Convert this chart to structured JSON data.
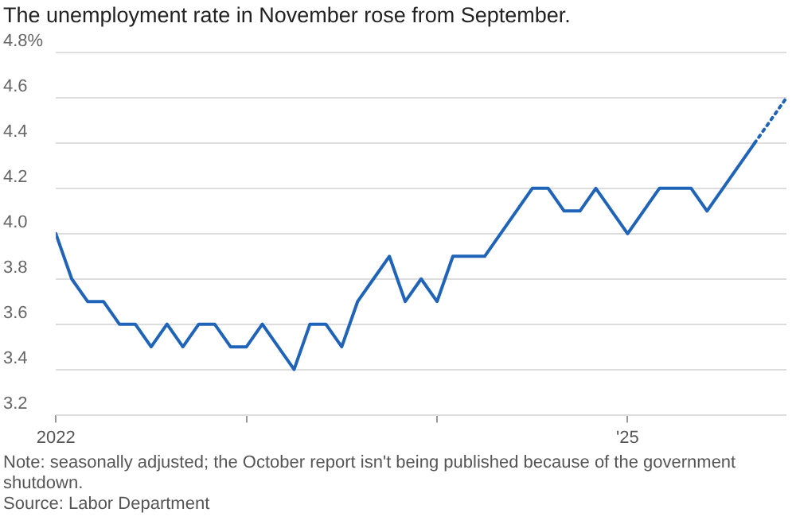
{
  "chart_data": {
    "type": "line",
    "title": "The unemployment rate in November rose from September.",
    "annotations": [
      "Note: seasonally adjusted; the October report isn't being published because of the government shutdown.",
      "Source: Labor Department"
    ],
    "series": [
      {
        "color": "#1f64b8",
        "line_style": "solid",
        "x": [
          "2022-01",
          "2022-02",
          "2022-03",
          "2022-04",
          "2022-05",
          "2022-06",
          "2022-07",
          "2022-08",
          "2022-09",
          "2022-10",
          "2022-11",
          "2022-12",
          "2023-01",
          "2023-02",
          "2023-03",
          "2023-04",
          "2023-05",
          "2023-06",
          "2023-07",
          "2023-08",
          "2023-09",
          "2023-10",
          "2023-11",
          "2023-12",
          "2024-01",
          "2024-02",
          "2024-03",
          "2024-04",
          "2024-05",
          "2024-06",
          "2024-07",
          "2024-08",
          "2024-09",
          "2024-10",
          "2024-11",
          "2024-12",
          "2025-01",
          "2025-02",
          "2025-03",
          "2025-04",
          "2025-05",
          "2025-06",
          "2025-07",
          "2025-08",
          "2025-09"
        ],
        "values": [
          4.0,
          3.8,
          3.7,
          3.7,
          3.6,
          3.6,
          3.5,
          3.6,
          3.5,
          3.6,
          3.6,
          3.5,
          3.5,
          3.6,
          3.5,
          3.4,
          3.6,
          3.6,
          3.5,
          3.7,
          3.8,
          3.9,
          3.7,
          3.8,
          3.7,
          3.9,
          3.9,
          3.9,
          4.0,
          4.1,
          4.2,
          4.2,
          4.1,
          4.1,
          4.2,
          4.1,
          4.0,
          4.1,
          4.2,
          4.2,
          4.2,
          4.1,
          4.2,
          4.3,
          4.4
        ]
      },
      {
        "color": "#1f64b8",
        "line_style": "dotted",
        "x": [
          "2025-09",
          "2025-11"
        ],
        "values": [
          4.4,
          4.6
        ]
      }
    ],
    "xlim": [
      "2022-01",
      "2025-11"
    ],
    "xticks": [
      {
        "value": "2022-01",
        "label": "2022"
      },
      {
        "value": "2023-01",
        "label": null
      },
      {
        "value": "2024-01",
        "label": null
      },
      {
        "value": "2025-01",
        "label": "'25"
      }
    ],
    "ylim": [
      3.2,
      4.8
    ],
    "yticks": [
      {
        "value": 3.2,
        "label": "3.2"
      },
      {
        "value": 3.4,
        "label": "3.4"
      },
      {
        "value": 3.6,
        "label": "3.6"
      },
      {
        "value": 3.8,
        "label": "3.8"
      },
      {
        "value": 4.0,
        "label": "4.0"
      },
      {
        "value": 4.2,
        "label": "4.2"
      },
      {
        "value": 4.4,
        "label": "4.4"
      },
      {
        "value": 4.6,
        "label": "4.6"
      },
      {
        "value": 4.8,
        "label": "4.8%"
      }
    ],
    "grid": "y",
    "legend": false,
    "marker": "none"
  }
}
